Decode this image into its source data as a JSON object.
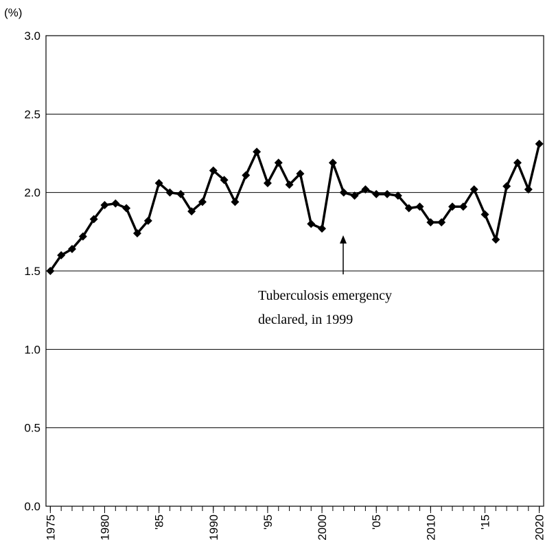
{
  "chart_data": {
    "type": "line",
    "ylabel": "(%)",
    "annotation": [
      "Tuberculosis emergency",
      "declared, in 1999"
    ],
    "x": [
      1975,
      1976,
      1977,
      1978,
      1979,
      1980,
      1981,
      1982,
      1983,
      1984,
      1985,
      1986,
      1987,
      1988,
      1989,
      1990,
      1991,
      1992,
      1993,
      1994,
      1995,
      1996,
      1997,
      1998,
      1999,
      2000,
      2001,
      2002,
      2003,
      2004,
      2005,
      2006,
      2007,
      2008,
      2009,
      2010,
      2011,
      2012,
      2013,
      2014,
      2015,
      2016,
      2017,
      2018,
      2019,
      2020
    ],
    "series": [
      {
        "color": "#000000",
        "values": [
          1.5,
          1.6,
          1.64,
          1.72,
          1.83,
          1.92,
          1.93,
          1.9,
          1.74,
          1.82,
          2.06,
          2.0,
          1.99,
          1.88,
          1.94,
          2.14,
          2.08,
          1.94,
          2.11,
          2.26,
          2.06,
          2.19,
          2.05,
          2.12,
          1.8,
          1.77,
          2.19,
          2.0,
          1.98,
          2.02,
          1.99,
          1.99,
          1.98,
          1.9,
          1.91,
          1.81,
          1.81,
          1.91,
          1.91,
          2.02,
          1.86,
          1.7,
          2.04,
          2.19,
          2.02,
          2.31
        ]
      }
    ],
    "xlim": [
      1974.6,
      2020.4
    ],
    "xticks": [
      1975,
      1980,
      {
        "value": 1985,
        "label": "'85"
      },
      1990,
      {
        "value": 1995,
        "label": "'95"
      },
      2000,
      {
        "value": 2005,
        "label": "'05"
      },
      2010,
      {
        "value": 2015,
        "label": "'15"
      },
      2020
    ],
    "ylim": [
      0,
      3
    ],
    "yticks": [
      {
        "value": 0,
        "label": "0.0"
      },
      0.5,
      {
        "value": 1,
        "label": "1.0"
      },
      1.5,
      {
        "value": 2,
        "label": "2.0"
      },
      2.5,
      {
        "value": 3,
        "label": "3.0"
      }
    ],
    "grid": true
  }
}
